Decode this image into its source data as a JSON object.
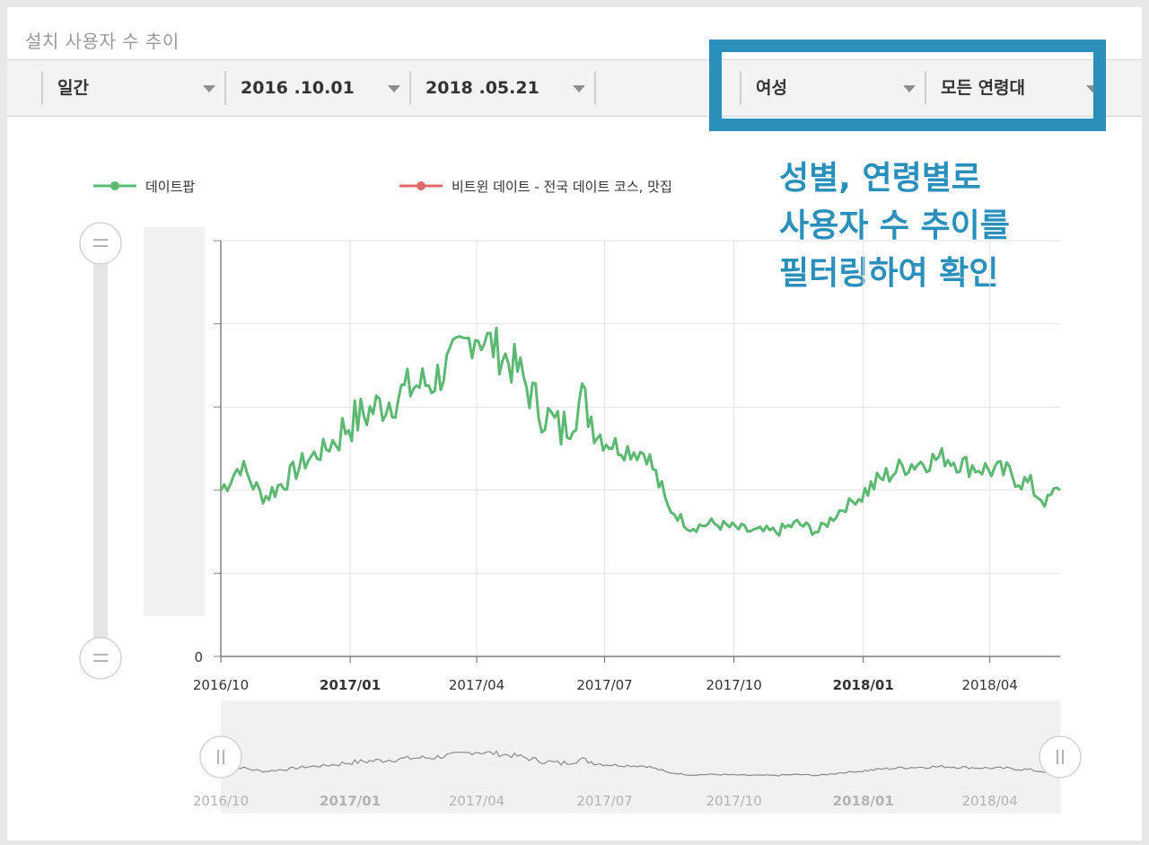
{
  "card": {
    "title": "설치 사용자 수 추이"
  },
  "filters": {
    "period": "일간",
    "start_date": "2016 .10.01",
    "end_date": "2018 .05.21",
    "gender": "여성",
    "age": "모든 연령대"
  },
  "annotation": {
    "lines": [
      "성별, 연령별로",
      "사용자 수 추이를",
      "필터링하여 확인"
    ],
    "color": "#2b8fbc"
  },
  "chart_data": {
    "type": "line",
    "series": [
      {
        "name": "데이트팝",
        "color": "#5cb872"
      },
      {
        "name": "비트윈 데이트 - 전국 데이트 코스, 맛집",
        "color": "#e06a6a",
        "values": []
      }
    ],
    "x_tick_labels": [
      "2016/10",
      "2017/01",
      "2017/04",
      "2017/07",
      "2017/10",
      "2018/01",
      "2018/04"
    ],
    "x_tick_bold": [
      false,
      true,
      false,
      false,
      false,
      true,
      false
    ],
    "y_tick_labels": [
      "0"
    ],
    "ylim": [
      0,
      5
    ],
    "grid": true,
    "legend": "top",
    "navigator": true,
    "primary_series": [
      [
        "2016-10-01",
        2.0
      ],
      [
        "2016-10-15",
        2.3
      ],
      [
        "2016-10-31",
        1.9
      ],
      [
        "2016-11-15",
        2.1
      ],
      [
        "2016-11-30",
        2.35
      ],
      [
        "2016-12-15",
        2.5
      ],
      [
        "2016-12-31",
        2.8
      ],
      [
        "2017-01-15",
        2.95
      ],
      [
        "2017-01-31",
        3.1
      ],
      [
        "2017-02-15",
        3.25
      ],
      [
        "2017-02-28",
        3.3
      ],
      [
        "2017-03-15",
        3.55
      ],
      [
        "2017-03-31",
        3.9
      ],
      [
        "2017-04-15",
        3.7
      ],
      [
        "2017-04-30",
        3.45
      ],
      [
        "2017-05-15",
        3.0
      ],
      [
        "2017-05-31",
        2.7
      ],
      [
        "2017-06-15",
        3.1
      ],
      [
        "2017-06-30",
        2.6
      ],
      [
        "2017-07-15",
        2.5
      ],
      [
        "2017-07-31",
        2.45
      ],
      [
        "2017-08-15",
        1.8
      ],
      [
        "2017-08-31",
        1.55
      ],
      [
        "2017-09-15",
        1.6
      ],
      [
        "2017-09-30",
        1.55
      ],
      [
        "2017-10-15",
        1.5
      ],
      [
        "2017-10-31",
        1.5
      ],
      [
        "2017-11-15",
        1.6
      ],
      [
        "2017-11-30",
        1.5
      ],
      [
        "2017-12-15",
        1.75
      ],
      [
        "2017-12-31",
        1.95
      ],
      [
        "2018-01-15",
        2.15
      ],
      [
        "2018-01-31",
        2.3
      ],
      [
        "2018-02-15",
        2.35
      ],
      [
        "2018-02-28",
        2.4
      ],
      [
        "2018-03-15",
        2.3
      ],
      [
        "2018-03-31",
        2.25
      ],
      [
        "2018-04-15",
        2.2
      ],
      [
        "2018-04-30",
        2.05
      ],
      [
        "2018-05-10",
        1.85
      ],
      [
        "2018-05-21",
        2.0
      ]
    ]
  }
}
